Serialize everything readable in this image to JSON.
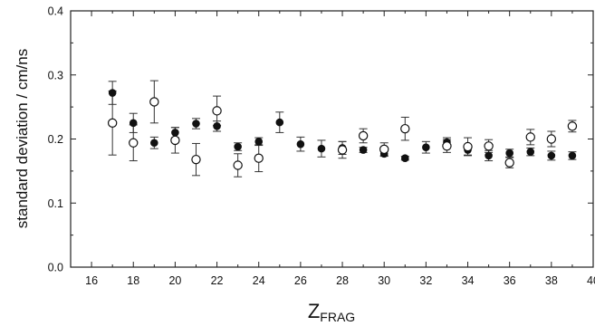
{
  "chart_data": {
    "type": "scatter",
    "xlabel_main": "Z",
    "xlabel_sub": "FRAG",
    "ylabel": "standard deviation / cm/ns",
    "xlim": [
      15,
      40
    ],
    "ylim": [
      0.0,
      0.4
    ],
    "x_ticks": [
      16,
      18,
      20,
      22,
      24,
      26,
      28,
      30,
      32,
      34,
      36,
      38,
      40
    ],
    "y_ticks": [
      "0.0",
      "0.1",
      "0.2",
      "0.3",
      "0.4"
    ],
    "y_tick_values": [
      0.0,
      0.1,
      0.2,
      0.3,
      0.4
    ],
    "grid": false,
    "legend": "none",
    "series": [
      {
        "marker": "filled-circle",
        "points": [
          {
            "x": 17,
            "y": 0.272,
            "err": 0.018
          },
          {
            "x": 18,
            "y": 0.225,
            "err": 0.015
          },
          {
            "x": 19,
            "y": 0.194,
            "err": 0.009
          },
          {
            "x": 20,
            "y": 0.21,
            "err": 0.008
          },
          {
            "x": 21,
            "y": 0.224,
            "err": 0.008
          },
          {
            "x": 22,
            "y": 0.22,
            "err": 0.008
          },
          {
            "x": 23,
            "y": 0.188,
            "err": 0.006
          },
          {
            "x": 24,
            "y": 0.196,
            "err": 0.006
          },
          {
            "x": 25,
            "y": 0.226,
            "err": 0.016
          },
          {
            "x": 26,
            "y": 0.192,
            "err": 0.011
          },
          {
            "x": 27,
            "y": 0.185,
            "err": 0.013
          },
          {
            "x": 28,
            "y": 0.186,
            "err": 0.01
          },
          {
            "x": 29,
            "y": 0.183,
            "err": 0.004
          },
          {
            "x": 30,
            "y": 0.177,
            "err": 0.004
          },
          {
            "x": 31,
            "y": 0.17,
            "err": 0.003
          },
          {
            "x": 32,
            "y": 0.187,
            "err": 0.009
          },
          {
            "x": 33,
            "y": 0.195,
            "err": 0.007
          },
          {
            "x": 34,
            "y": 0.183,
            "err": 0.008
          },
          {
            "x": 35,
            "y": 0.174,
            "err": 0.008
          },
          {
            "x": 36,
            "y": 0.178,
            "err": 0.006
          },
          {
            "x": 37,
            "y": 0.18,
            "err": 0.006
          },
          {
            "x": 38,
            "y": 0.174,
            "err": 0.007
          },
          {
            "x": 39,
            "y": 0.174,
            "err": 0.006
          }
        ]
      },
      {
        "marker": "open-circle",
        "points": [
          {
            "x": 17,
            "y": 0.225,
            "err": 0.05
          },
          {
            "x": 18,
            "y": 0.194,
            "err": 0.028
          },
          {
            "x": 19,
            "y": 0.258,
            "err": 0.033
          },
          {
            "x": 20,
            "y": 0.198,
            "err": 0.02
          },
          {
            "x": 21,
            "y": 0.168,
            "err": 0.025
          },
          {
            "x": 22,
            "y": 0.244,
            "err": 0.023
          },
          {
            "x": 23,
            "y": 0.159,
            "err": 0.018
          },
          {
            "x": 24,
            "y": 0.17,
            "err": 0.021
          },
          {
            "x": 28,
            "y": 0.183,
            "err": 0.013
          },
          {
            "x": 29,
            "y": 0.205,
            "err": 0.011
          },
          {
            "x": 30,
            "y": 0.184,
            "err": 0.01
          },
          {
            "x": 31,
            "y": 0.216,
            "err": 0.018
          },
          {
            "x": 33,
            "y": 0.189,
            "err": 0.01
          },
          {
            "x": 34,
            "y": 0.188,
            "err": 0.014
          },
          {
            "x": 35,
            "y": 0.189,
            "err": 0.01
          },
          {
            "x": 36,
            "y": 0.163,
            "err": 0.008
          },
          {
            "x": 37,
            "y": 0.203,
            "err": 0.012
          },
          {
            "x": 38,
            "y": 0.2,
            "err": 0.012
          },
          {
            "x": 39,
            "y": 0.22,
            "err": 0.009
          }
        ]
      }
    ]
  }
}
